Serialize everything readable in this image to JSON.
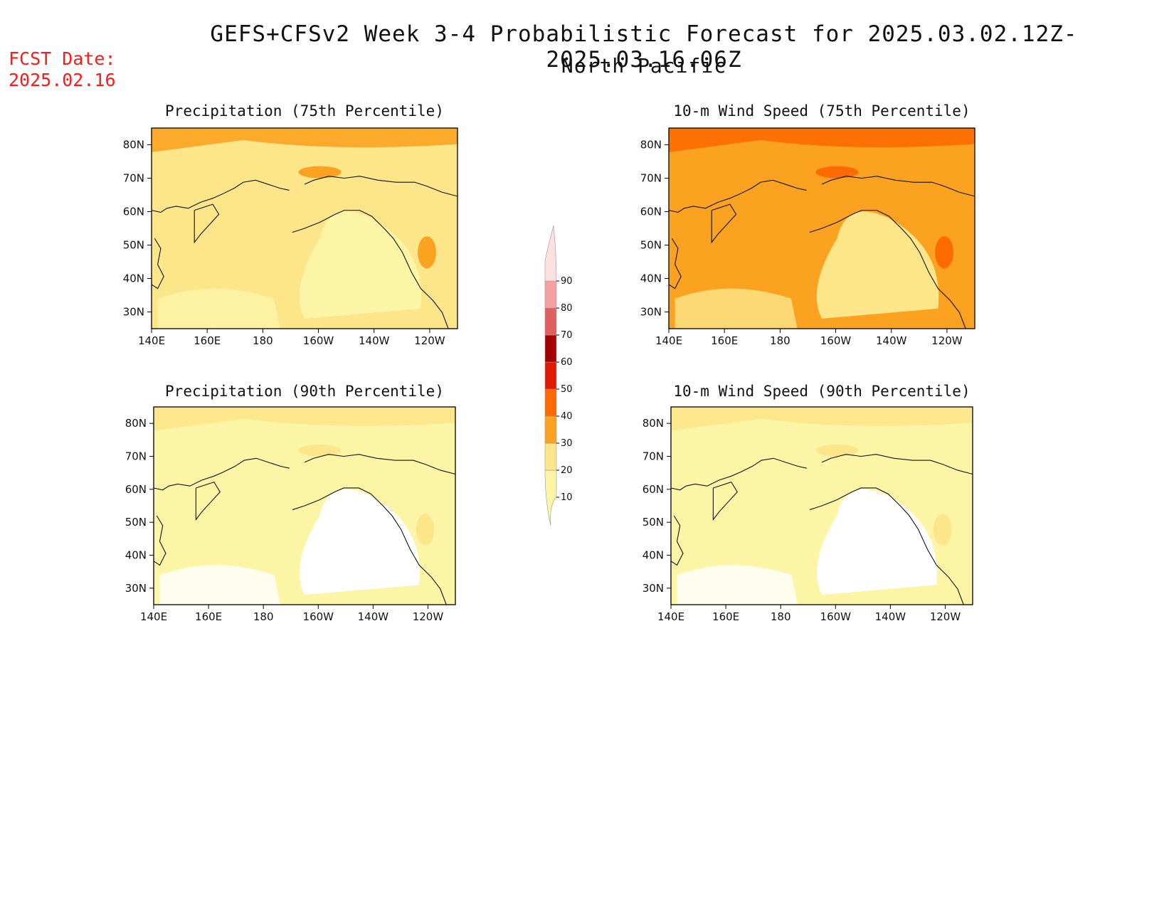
{
  "header": {
    "title": "GEFS+CFSv2 Week 3-4 Probabilistic Forecast for 2025.03.02.12Z-2025.03.16.06Z",
    "region": "North Pacific",
    "fcst_label": "FCST Date:",
    "fcst_date": "2025.02.16"
  },
  "panels": [
    {
      "id": "precip75",
      "title": "Precipitation (75th Percentile)",
      "base_color": "#fde58a",
      "patch_color": "#fdf5a6",
      "hot_color": "#fba320"
    },
    {
      "id": "wind75",
      "title": "10-m Wind Speed (75th Percentile)",
      "base_color": "#fba320",
      "patch_color": "#fde58a",
      "hot_color": "#fd6a00"
    },
    {
      "id": "precip90",
      "title": "Precipitation (90th Percentile)",
      "base_color": "#fdf5a6",
      "patch_color": "#ffffff",
      "hot_color": "#fde58a"
    },
    {
      "id": "wind90",
      "title": "10-m Wind Speed (90th Percentile)",
      "base_color": "#fdf5a6",
      "patch_color": "#ffffff",
      "hot_color": "#fde58a"
    }
  ],
  "axes": {
    "lat_ticks": [
      "80N",
      "70N",
      "60N",
      "50N",
      "40N",
      "30N"
    ],
    "lon_ticks": [
      "140E",
      "160E",
      "180",
      "160W",
      "140W",
      "120W"
    ]
  },
  "colorbar": {
    "levels": [
      "10",
      "20",
      "30",
      "40",
      "50",
      "60",
      "70",
      "80",
      "90"
    ],
    "colors": [
      "#fdf5a6",
      "#fde58a",
      "#fba320",
      "#fd6a00",
      "#e01a00",
      "#a30000",
      "#e06060",
      "#f4a0a0",
      "#fde0e0"
    ]
  }
}
